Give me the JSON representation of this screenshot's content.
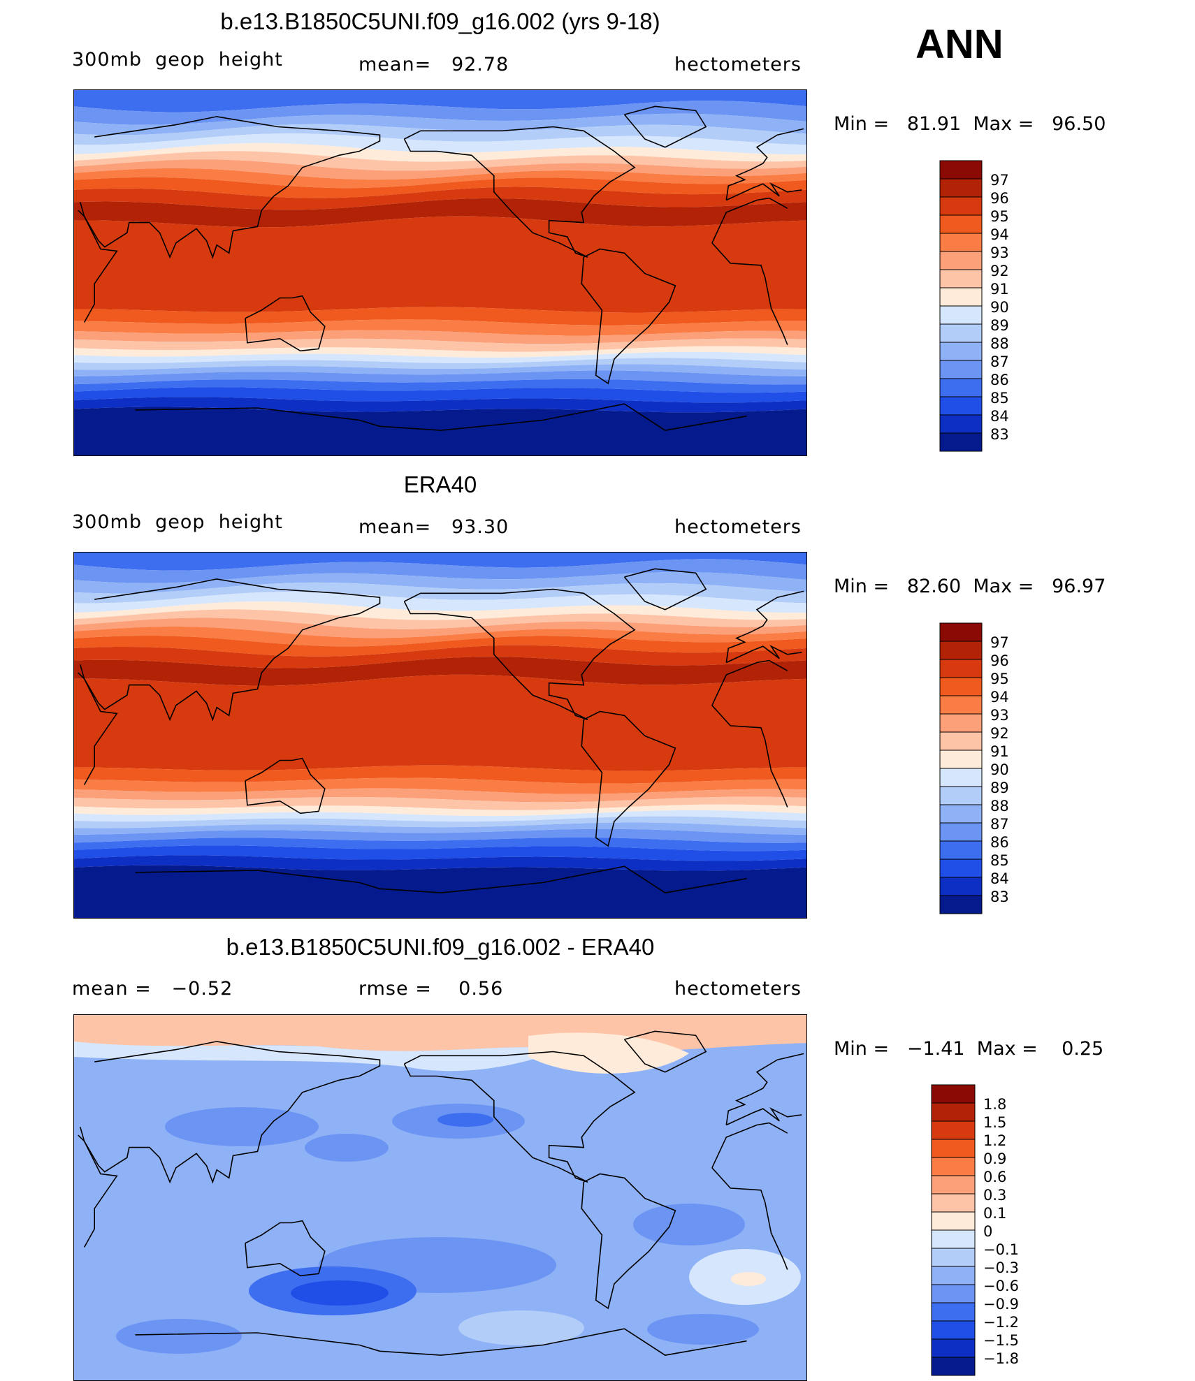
{
  "season": "ANN",
  "panels": [
    {
      "title": "b.e13.B1850C5UNI.f09_g16.002 (yrs 9-18)",
      "left_label": "300mb  geop  height",
      "mid_label": "mean=   92.78",
      "right_label": "hectometers",
      "minmax": "Min =   81.91  Max =   96.50",
      "colorbar_labels": [
        "97",
        "96",
        "95",
        "94",
        "93",
        "92",
        "91",
        "90",
        "89",
        "88",
        "87",
        "86",
        "85",
        "84",
        "83"
      ],
      "colorbar_colors": [
        "#8b0a05",
        "#b12206",
        "#d63a0e",
        "#f05a1e",
        "#fa7d45",
        "#fca07a",
        "#fdc4a8",
        "#feebd9",
        "#d6e6fc",
        "#b3cdf9",
        "#8fb2f6",
        "#6c94f2",
        "#3e6ef0",
        "#1f4fe6",
        "#0d2fc4",
        "#051a8c"
      ]
    },
    {
      "title": "ERA40",
      "left_label": "300mb  geop  height",
      "mid_label": "mean=   93.30",
      "right_label": "hectometers",
      "minmax": "Min =   82.60  Max =   96.97",
      "colorbar_labels": [
        "97",
        "96",
        "95",
        "94",
        "93",
        "92",
        "91",
        "90",
        "89",
        "88",
        "87",
        "86",
        "85",
        "84",
        "83"
      ],
      "colorbar_colors": [
        "#8b0a05",
        "#b12206",
        "#d63a0e",
        "#f05a1e",
        "#fa7d45",
        "#fca07a",
        "#fdc4a8",
        "#feebd9",
        "#d6e6fc",
        "#b3cdf9",
        "#8fb2f6",
        "#6c94f2",
        "#3e6ef0",
        "#1f4fe6",
        "#0d2fc4",
        "#051a8c"
      ]
    },
    {
      "title": "b.e13.B1850C5UNI.f09_g16.002 - ERA40",
      "left_label": "mean =   −0.52",
      "mid_label": "rmse =    0.56",
      "right_label": "hectometers",
      "minmax": "Min =   −1.41  Max =    0.25",
      "colorbar_labels": [
        "1.8",
        "1.5",
        "1.2",
        "0.9",
        "0.6",
        "0.3",
        "0.1",
        "0",
        "−0.1",
        "−0.3",
        "−0.6",
        "−0.9",
        "−1.2",
        "−1.5",
        "−1.8"
      ],
      "colorbar_colors": [
        "#8b0a05",
        "#b12206",
        "#d63a0e",
        "#f05a1e",
        "#fa7d45",
        "#fca07a",
        "#fdc4a8",
        "#feebd9",
        "#d6e6fc",
        "#b3cdf9",
        "#8fb2f6",
        "#6c94f2",
        "#3e6ef0",
        "#1f4fe6",
        "#0d2fc4",
        "#051a8c"
      ]
    }
  ],
  "chart_data": [
    {
      "type": "heatmap",
      "title": "b.e13.B1850C5UNI.f09_g16.002 (yrs 9-18)",
      "variable": "300mb geop height",
      "units": "hectometers",
      "mean": 92.78,
      "min": 81.91,
      "max": 96.5,
      "contour_levels": [
        83,
        84,
        85,
        86,
        87,
        88,
        89,
        90,
        91,
        92,
        93,
        94,
        95,
        96,
        97
      ]
    },
    {
      "type": "heatmap",
      "title": "ERA40",
      "variable": "300mb geop height",
      "units": "hectometers",
      "mean": 93.3,
      "min": 82.6,
      "max": 96.97,
      "contour_levels": [
        83,
        84,
        85,
        86,
        87,
        88,
        89,
        90,
        91,
        92,
        93,
        94,
        95,
        96,
        97
      ]
    },
    {
      "type": "heatmap",
      "title": "b.e13.B1850C5UNI.f09_g16.002 - ERA40",
      "units": "hectometers",
      "mean": -0.52,
      "rmse": 0.56,
      "min": -1.41,
      "max": 0.25,
      "contour_levels": [
        -1.8,
        -1.5,
        -1.2,
        -0.9,
        -0.6,
        -0.3,
        -0.1,
        0,
        0.1,
        0.3,
        0.6,
        0.9,
        1.2,
        1.5,
        1.8
      ]
    }
  ]
}
